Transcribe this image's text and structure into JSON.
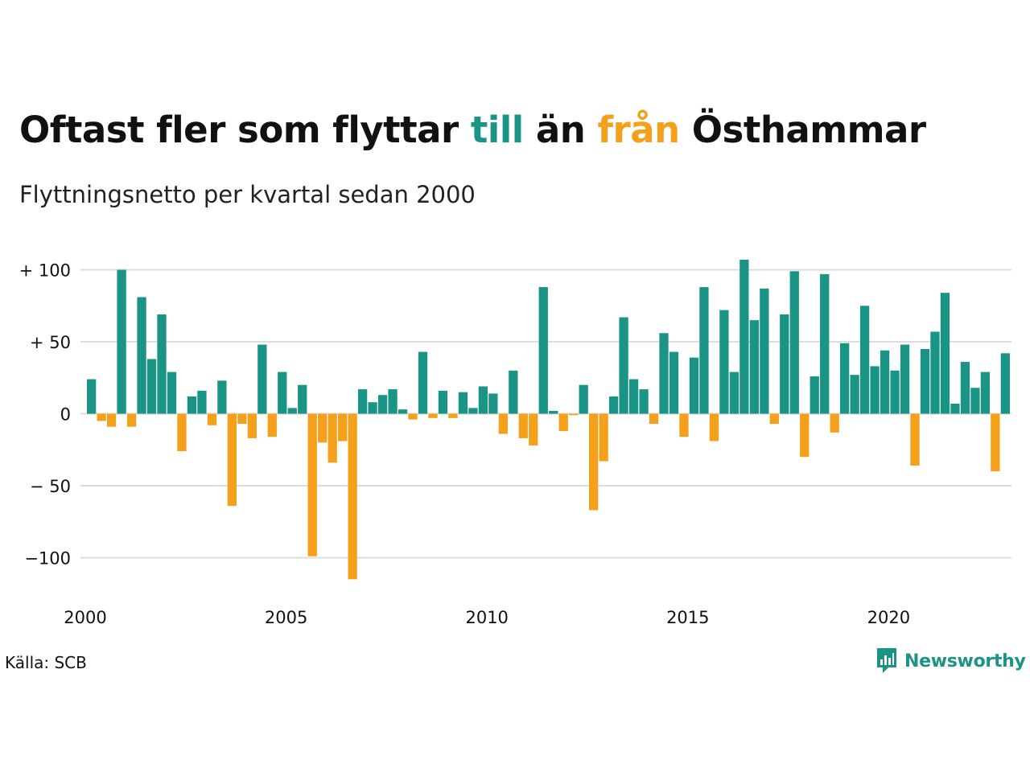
{
  "title": {
    "part1": "Oftast fler som flyttar ",
    "part2": "till",
    "part3": " än ",
    "part4": "från",
    "part5": " Östhammar"
  },
  "subtitle": "Flyttningsnetto per kvartal sedan 2000",
  "source": "Källa: SCB",
  "logo_text": "Newsworthy",
  "chart_data": {
    "type": "bar",
    "x_start": "2000Q1",
    "x_ticks": [
      "2000",
      "2005",
      "2010",
      "2015",
      "2020"
    ],
    "y_ticks": [
      {
        "value": 100,
        "label": "+ 100"
      },
      {
        "value": 50,
        "label": "+  50"
      },
      {
        "value": 0,
        "label": "0"
      },
      {
        "value": -50,
        "label": "− 50"
      },
      {
        "value": -100,
        "label": "−100"
      }
    ],
    "ylim": [
      -115,
      107
    ],
    "grid": true,
    "colors": {
      "positive": "#1a9485",
      "negative": "#f5a01a",
      "grid": "#dddddd"
    },
    "values": [
      24,
      -5,
      -9,
      100,
      -9,
      81,
      38,
      69,
      29,
      -26,
      12,
      16,
      -8,
      23,
      -64,
      -7,
      -17,
      48,
      -16,
      29,
      4,
      20,
      -99,
      -20,
      -34,
      -19,
      -115,
      17,
      8,
      13,
      17,
      3,
      -4,
      43,
      -3,
      16,
      -3,
      15,
      4,
      19,
      14,
      -14,
      30,
      -17,
      -22,
      88,
      2,
      -12,
      -1,
      20,
      -67,
      -33,
      12,
      67,
      24,
      17,
      -7,
      56,
      43,
      -16,
      39,
      88,
      -19,
      72,
      29,
      107,
      65,
      87,
      -7,
      69,
      99,
      -30,
      26,
      97,
      -13,
      49,
      27,
      75,
      33,
      44,
      30,
      48,
      -36,
      45,
      57,
      84,
      7,
      36,
      18,
      29,
      -40,
      42
    ]
  }
}
